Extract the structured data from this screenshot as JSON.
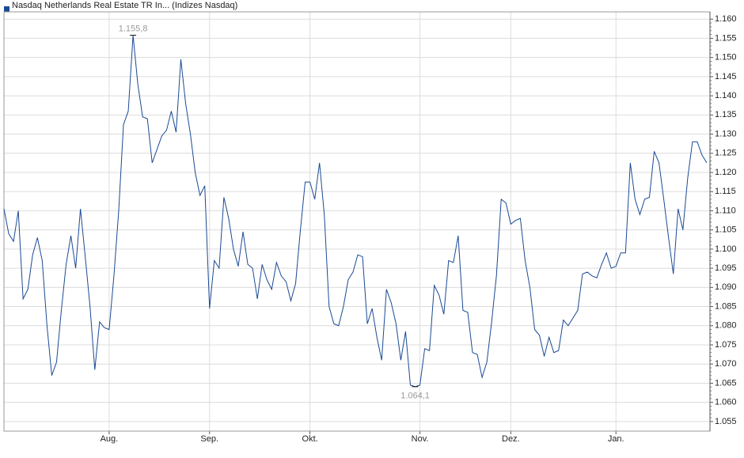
{
  "chart_data": {
    "type": "line",
    "grid": true,
    "ylim": [
      1052.5,
      1161.9
    ],
    "yticks": [
      {
        "value": 1055,
        "label": "1.055"
      },
      {
        "value": 1060,
        "label": "1.060"
      },
      {
        "value": 1065,
        "label": "1.065"
      },
      {
        "value": 1070,
        "label": "1.070"
      },
      {
        "value": 1075,
        "label": "1.075"
      },
      {
        "value": 1080,
        "label": "1.080"
      },
      {
        "value": 1085,
        "label": "1.085"
      },
      {
        "value": 1090,
        "label": "1.090"
      },
      {
        "value": 1095,
        "label": "1.095"
      },
      {
        "value": 1100,
        "label": "1.100"
      },
      {
        "value": 1105,
        "label": "1.105"
      },
      {
        "value": 1110,
        "label": "1.110"
      },
      {
        "value": 1115,
        "label": "1.115"
      },
      {
        "value": 1120,
        "label": "1.120"
      },
      {
        "value": 1125,
        "label": "1.125"
      },
      {
        "value": 1130,
        "label": "1.130"
      },
      {
        "value": 1135,
        "label": "1.135"
      },
      {
        "value": 1140,
        "label": "1.140"
      },
      {
        "value": 1145,
        "label": "1.145"
      },
      {
        "value": 1150,
        "label": "1.150"
      },
      {
        "value": 1155,
        "label": "1.155"
      },
      {
        "value": 1160,
        "label": "1.160"
      }
    ],
    "categories": [
      null,
      null,
      null,
      null,
      null,
      null,
      null,
      null,
      null,
      null,
      null,
      null,
      null,
      null,
      null,
      null,
      null,
      null,
      null,
      null,
      null,
      null,
      "Aug.",
      null,
      null,
      null,
      null,
      null,
      null,
      null,
      null,
      null,
      null,
      null,
      null,
      null,
      null,
      null,
      null,
      null,
      null,
      null,
      null,
      "Sep.",
      null,
      null,
      null,
      null,
      null,
      null,
      null,
      null,
      null,
      null,
      null,
      null,
      null,
      null,
      null,
      null,
      null,
      null,
      null,
      null,
      "Okt.",
      null,
      null,
      null,
      null,
      null,
      null,
      null,
      null,
      null,
      null,
      null,
      null,
      null,
      null,
      null,
      null,
      null,
      null,
      null,
      null,
      null,
      null,
      "Nov.",
      null,
      null,
      null,
      null,
      null,
      null,
      null,
      null,
      null,
      null,
      null,
      null,
      null,
      null,
      null,
      null,
      null,
      null,
      "Dez.",
      null,
      null,
      null,
      null,
      null,
      null,
      null,
      null,
      null,
      null,
      null,
      null,
      null,
      null,
      null,
      null,
      null,
      null,
      null,
      null,
      null,
      "Jan.",
      null,
      null,
      null,
      null,
      null,
      null,
      null,
      null,
      null,
      null,
      null,
      null,
      null,
      null,
      null,
      null,
      null,
      null,
      null
    ],
    "series": [
      {
        "name": "Nasdaq Netherlands Real Estate TR In... (Indizes Nasdaq)",
        "color": "#1a4a94",
        "values": [
          1110.5,
          1104,
          1102,
          1110,
          1087,
          1089.5,
          1098.5,
          1103,
          1097,
          1080,
          1067,
          1070.5,
          1084,
          1096,
          1103.5,
          1095,
          1110.5,
          1098,
          1085,
          1068.5,
          1081,
          1079.5,
          1079,
          1093,
          1110,
          1132.5,
          1136,
          1155.8,
          1143,
          1134.5,
          1134,
          1122.5,
          1126,
          1129.5,
          1131,
          1136,
          1130.5,
          1149.5,
          1138,
          1130,
          1120,
          1114,
          1116.5,
          1084.5,
          1097,
          1095,
          1113.5,
          1108,
          1100,
          1095.5,
          1104.5,
          1096,
          1095,
          1087,
          1096,
          1092,
          1089.5,
          1096.5,
          1093,
          1091.5,
          1086.5,
          1091,
          1105,
          1117.5,
          1117.5,
          1113,
          1122.5,
          1109,
          1085,
          1080.5,
          1080,
          1085,
          1092,
          1094,
          1098.5,
          1098,
          1080.5,
          1084.5,
          1077,
          1071,
          1089.5,
          1086,
          1080.5,
          1071,
          1078.5,
          1064.5,
          1064.1,
          1064.5,
          1074,
          1073.5,
          1090.5,
          1088,
          1083,
          1097,
          1096.5,
          1103.5,
          1084,
          1083.5,
          1073,
          1072.5,
          1066.5,
          1070.5,
          1081,
          1093,
          1113,
          1112,
          1106.5,
          1107.5,
          1108,
          1097,
          1090,
          1079,
          1077.5,
          1072,
          1077,
          1073,
          1073.5,
          1081.5,
          1080,
          1082,
          1084,
          1093.5,
          1094,
          1093,
          1092.5,
          1096,
          1099,
          1095,
          1095.5,
          1099,
          1099,
          1122.5,
          1113,
          1109,
          1113,
          1113.5,
          1125.5,
          1122.5,
          1113,
          1103,
          1093.5,
          1110.5,
          1105,
          1118.5,
          1128,
          1128,
          1124.5,
          1122.5
        ],
        "value_labels": [
          null,
          null,
          null,
          null,
          null,
          null,
          null,
          null,
          null,
          null,
          null,
          null,
          null,
          null,
          null,
          null,
          null,
          null,
          null,
          null,
          null,
          null,
          null,
          null,
          null,
          null,
          null,
          "1.155,8",
          null,
          null,
          null,
          null,
          null,
          null,
          null,
          null,
          null,
          null,
          null,
          null,
          null,
          null,
          null,
          null,
          null,
          null,
          null,
          null,
          null,
          null,
          null,
          null,
          null,
          null,
          null,
          null,
          null,
          null,
          null,
          null,
          null,
          null,
          null,
          null,
          null,
          null,
          null,
          null,
          null,
          null,
          null,
          null,
          null,
          null,
          null,
          null,
          null,
          null,
          null,
          null,
          null,
          null,
          null,
          null,
          null,
          null,
          "1.064,1",
          null,
          null,
          null,
          null,
          null,
          null,
          null,
          null,
          null,
          null,
          null,
          null,
          null,
          null,
          null,
          null,
          null,
          null,
          null,
          null,
          null,
          null,
          null,
          null,
          null,
          null,
          null,
          null,
          null,
          null,
          null,
          null,
          null,
          null,
          null,
          null,
          null,
          null,
          null,
          null,
          null,
          null,
          null,
          null,
          null,
          null,
          null,
          null,
          null,
          null,
          null,
          null,
          null,
          null,
          null,
          null,
          null,
          null,
          null,
          null,
          null
        ]
      }
    ]
  }
}
